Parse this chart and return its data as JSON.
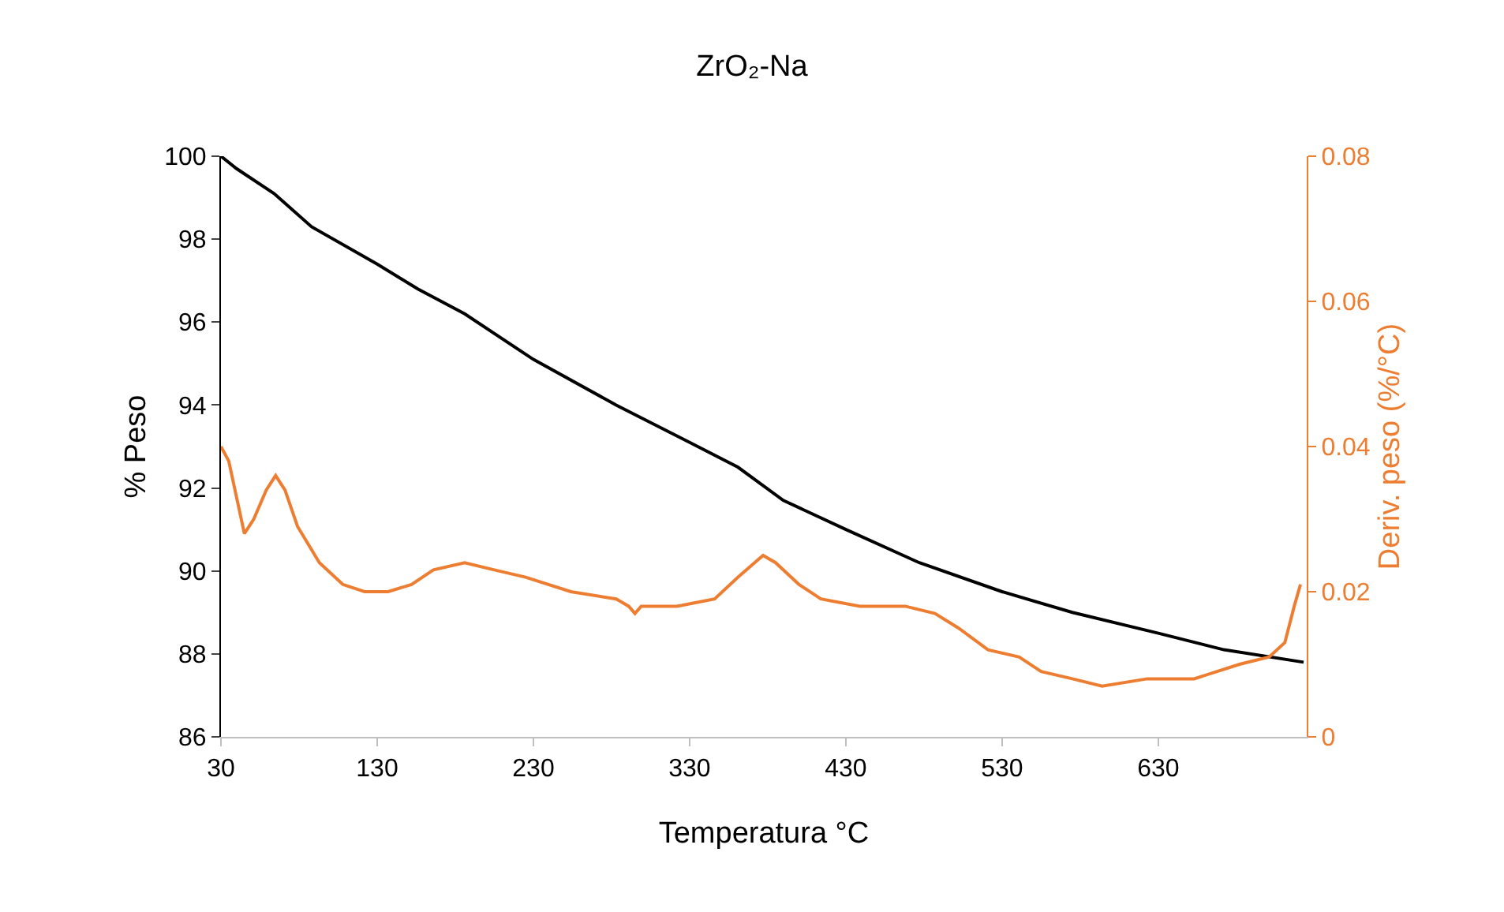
{
  "chart_data": {
    "type": "line",
    "title": "ZrO₂-Na",
    "xlabel": "Temperatura °C",
    "ylabel": "% Peso",
    "y2label": "Deriv. peso (%/°C)",
    "xlim": [
      30,
      725
    ],
    "xticks": [
      30,
      130,
      230,
      330,
      430,
      530,
      630
    ],
    "ylim": [
      86,
      100
    ],
    "yticks": [
      86,
      88,
      90,
      92,
      94,
      96,
      98,
      100
    ],
    "y2lim": [
      0,
      0.08
    ],
    "y2ticks": [
      0,
      0.02,
      0.04,
      0.06,
      0.08
    ],
    "series": [
      {
        "color": "#000000",
        "x": [
          30,
          40,
          64,
          88,
          130,
          156,
          186,
          230,
          283,
          330,
          361,
          390,
          430,
          477,
          530,
          575,
          630,
          672,
          723
        ],
        "values": [
          100,
          99.7,
          99.1,
          98.3,
          97.4,
          96.8,
          96.2,
          95.1,
          94.0,
          93.1,
          92.5,
          91.7,
          91.0,
          90.2,
          89.5,
          89.0,
          88.5,
          88.1,
          87.8
        ]
      },
      {
        "color": "#ed7d31",
        "axis": "y2",
        "x": [
          30,
          35,
          40,
          45,
          51,
          59,
          65,
          71,
          79,
          93,
          108,
          122,
          137,
          152,
          166,
          186,
          205,
          225,
          254,
          283,
          291,
          295,
          299,
          322,
          346,
          361,
          377,
          385,
          400,
          414,
          439,
          468,
          487,
          502,
          521,
          541,
          555,
          575,
          594,
          623,
          653,
          682,
          701,
          711,
          717,
          721
        ],
        "values": [
          0.04,
          0.038,
          0.033,
          0.028,
          0.03,
          0.034,
          0.036,
          0.034,
          0.029,
          0.024,
          0.021,
          0.02,
          0.02,
          0.021,
          0.023,
          0.024,
          0.023,
          0.022,
          0.02,
          0.019,
          0.018,
          0.017,
          0.018,
          0.018,
          0.019,
          0.022,
          0.025,
          0.024,
          0.021,
          0.019,
          0.018,
          0.018,
          0.017,
          0.015,
          0.012,
          0.011,
          0.009,
          0.008,
          0.007,
          0.008,
          0.008,
          0.01,
          0.011,
          0.013,
          0.018,
          0.021
        ]
      }
    ]
  }
}
